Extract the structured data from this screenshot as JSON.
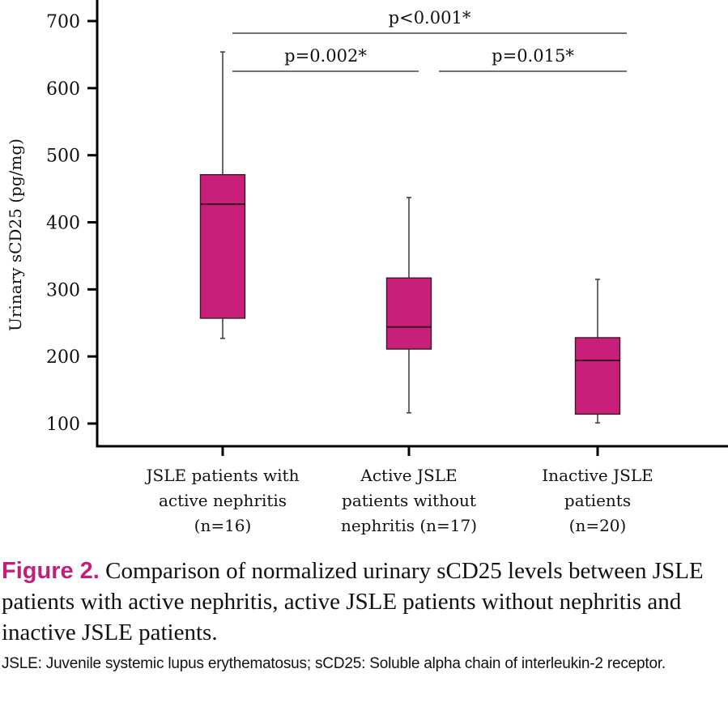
{
  "chart_data": {
    "type": "box",
    "title": "",
    "xlabel": "",
    "ylabel": "Urinary sCD25 (pg/mg)",
    "ylim": [
      65,
      730
    ],
    "yticks": [
      100,
      200,
      300,
      400,
      500,
      600,
      700
    ],
    "grid": false,
    "box_color": "#c8207a",
    "categories": [
      [
        "JSLE patients with",
        "active nephritis",
        "(n=16)"
      ],
      [
        "Active JSLE",
        "patients without",
        "nephritis (n=17)"
      ],
      [
        "Inactive JSLE",
        "patients",
        "(n=20)"
      ]
    ],
    "boxes": [
      {
        "name": "JSLE patients with active nephritis",
        "n": 16,
        "whisker_low": 227,
        "q1": 257,
        "median": 427,
        "q3": 471,
        "whisker_high": 654
      },
      {
        "name": "Active JSLE patients without nephritis",
        "n": 17,
        "whisker_low": 116,
        "q1": 211,
        "median": 244,
        "q3": 317,
        "whisker_high": 437
      },
      {
        "name": "Inactive JSLE patients",
        "n": 20,
        "whisker_low": 101,
        "q1": 114,
        "median": 194,
        "q3": 228,
        "whisker_high": 315
      }
    ],
    "annotations": [
      {
        "text": "p<0.001*",
        "from": 0,
        "to": 2,
        "level": 2
      },
      {
        "text": "p=0.002*",
        "from": 0,
        "to": 1,
        "level": 1
      },
      {
        "text": "p=0.015*",
        "from": 1,
        "to": 2,
        "level": 1
      }
    ]
  },
  "caption": {
    "figure_label": "Figure 2.",
    "text": " Comparison of normalized urinary sCD25 levels between JSLE patients with active nephritis, active JSLE patients without nephritis and inactive JSLE patients."
  },
  "footnote": "JSLE: Juvenile systemic lupus erythematosus; sCD25: Soluble alpha chain of interleukin-2 receptor."
}
